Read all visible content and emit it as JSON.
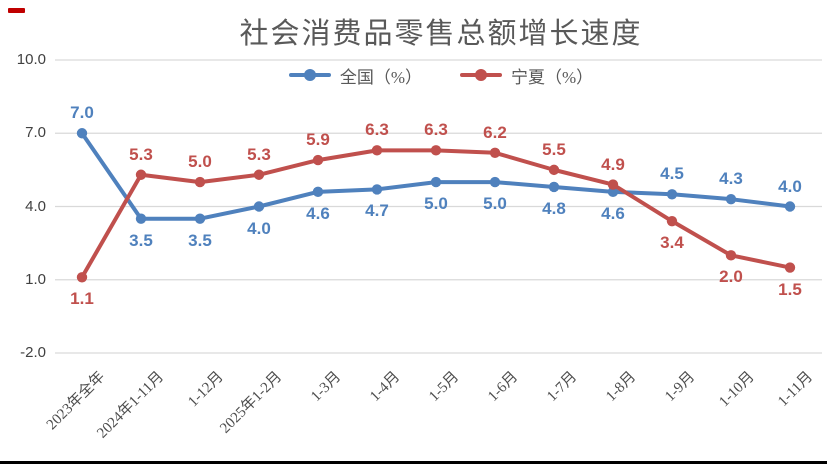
{
  "title": "社会消费品零售总额增长速度",
  "legend": [
    {
      "label": "全国（%）",
      "color": "#4F81BD"
    },
    {
      "label": "宁夏（%）",
      "color": "#C0504D"
    }
  ],
  "colors": {
    "grid": "#D9D9D9",
    "axis_text": "#404040",
    "title_text": "#595959",
    "bottom_bar": "#000000",
    "corner_dash": "#C00000"
  },
  "chart_data": {
    "type": "line",
    "title": "社会消费品零售总额增长速度",
    "categories": [
      "2023年全年",
      "2024年1-11月",
      "1-12月",
      "2025年1-2月",
      "1-3月",
      "1-4月",
      "1-5月",
      "1-6月",
      "1-7月",
      "1-8月",
      "1-9月",
      "1-10月",
      "1-11月"
    ],
    "series": [
      {
        "name": "全国（%）",
        "color": "#4F81BD",
        "values": [
          7.0,
          3.5,
          3.5,
          4.0,
          4.6,
          4.7,
          5.0,
          5.0,
          4.8,
          4.6,
          4.5,
          4.3,
          4.0
        ],
        "label_side": [
          "above",
          "below",
          "below",
          "below",
          "below",
          "below",
          "below",
          "below",
          "below",
          "below",
          "above",
          "above",
          "above"
        ]
      },
      {
        "name": "宁夏（%）",
        "color": "#C0504D",
        "values": [
          1.1,
          5.3,
          5.0,
          5.3,
          5.9,
          6.3,
          6.3,
          6.2,
          5.5,
          4.9,
          3.4,
          2.0,
          1.5
        ],
        "label_side": [
          "below",
          "above",
          "above",
          "above",
          "above",
          "above",
          "above",
          "above",
          "above",
          "above",
          "below",
          "below",
          "below"
        ]
      }
    ],
    "y_ticks": [
      10.0,
      7.0,
      4.0,
      1.0,
      -2.0
    ],
    "y_tick_labels": [
      "10.0",
      "7.0",
      "4.0",
      "1.0",
      "-2.0"
    ],
    "ylim": [
      -2.0,
      10.0
    ],
    "xlabel": "",
    "ylabel": "",
    "grid": true,
    "legend_position": "top",
    "data_labels": true
  }
}
